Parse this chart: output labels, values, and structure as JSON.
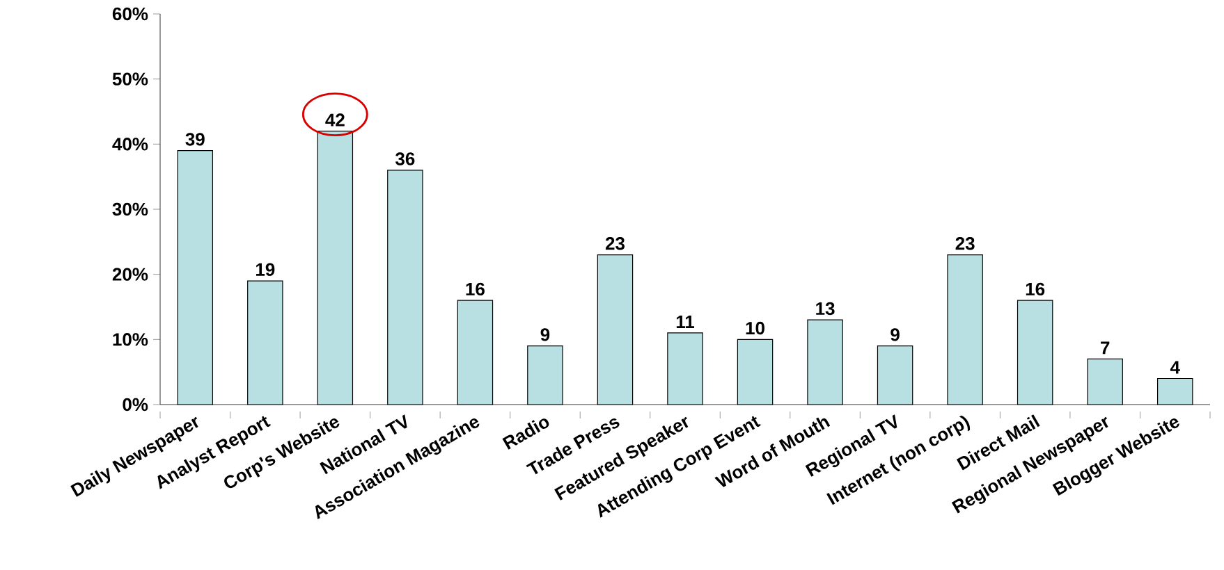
{
  "chart_data": {
    "type": "bar",
    "categories": [
      "Daily Newspaper",
      "Analyst Report",
      "Corp's Website",
      "National TV",
      "Association Magazine",
      "Radio",
      "Trade Press",
      "Featured Speaker",
      "Attending Corp Event",
      "Word of Mouth",
      "Regional TV",
      "Internet (non corp)",
      "Direct Mail",
      "Regional Newspaper",
      "Blogger Website"
    ],
    "values": [
      39,
      19,
      42,
      36,
      16,
      9,
      23,
      11,
      10,
      13,
      9,
      23,
      16,
      7,
      4
    ],
    "color": "#b8e0e2",
    "ylim": [
      0,
      60
    ],
    "yticks": [
      {
        "value": 0,
        "label": "0%"
      },
      {
        "value": 10,
        "label": "10%"
      },
      {
        "value": 20,
        "label": "20%"
      },
      {
        "value": 30,
        "label": "30%"
      },
      {
        "value": 40,
        "label": "40%"
      },
      {
        "value": 50,
        "label": "50%"
      },
      {
        "value": 60,
        "label": "60%"
      }
    ],
    "data_labels": true
  }
}
